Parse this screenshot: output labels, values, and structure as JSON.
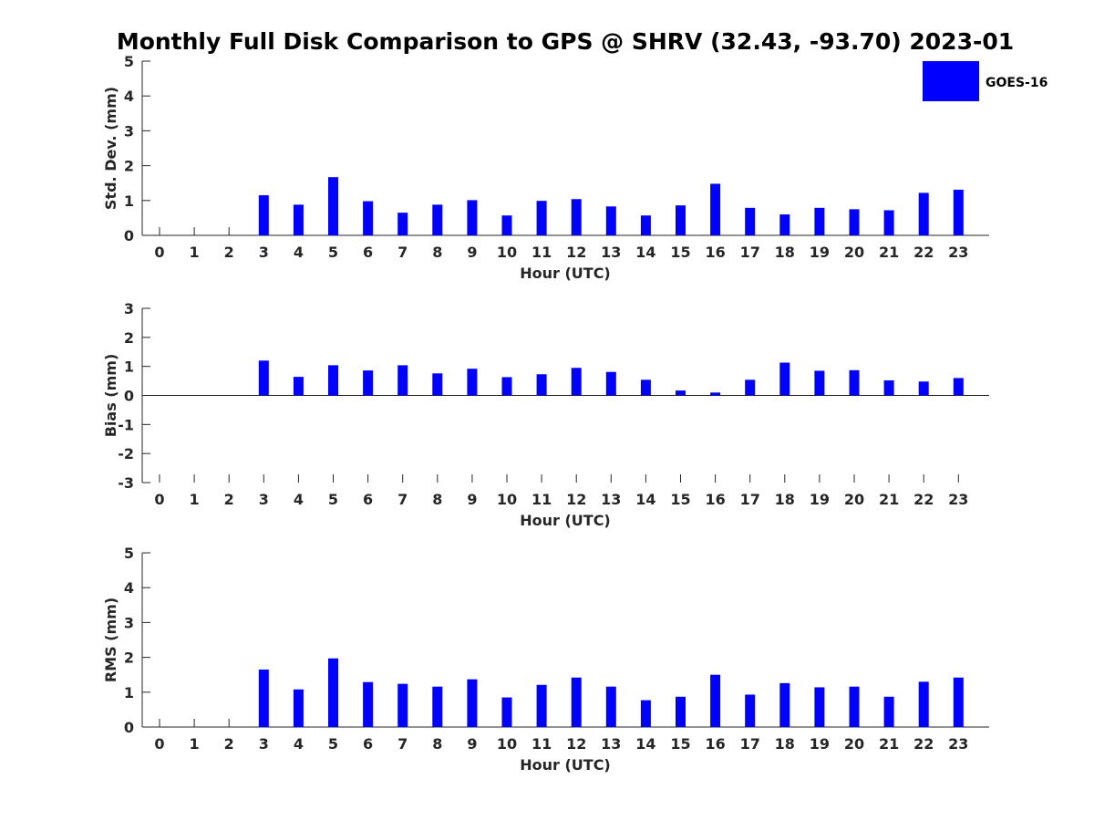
{
  "title": "Monthly Full Disk Comparison to GPS @ SHRV (32.43, -93.70) 2023-01",
  "bar_color": "#0000ff",
  "legend": {
    "label": "GOES-16"
  },
  "chart_data": [
    {
      "type": "bar",
      "xlabel": "Hour (UTC)",
      "ylabel": "Std. Dev. (mm)",
      "ylim": [
        0,
        5
      ],
      "yticks": [
        0,
        1,
        2,
        3,
        4,
        5
      ],
      "categories": [
        "0",
        "1",
        "2",
        "3",
        "4",
        "5",
        "6",
        "7",
        "8",
        "9",
        "10",
        "11",
        "12",
        "13",
        "14",
        "15",
        "16",
        "17",
        "18",
        "19",
        "20",
        "21",
        "22",
        "23"
      ],
      "series": [
        {
          "name": "GOES-16",
          "values": [
            null,
            null,
            null,
            1.15,
            0.88,
            1.67,
            0.98,
            0.65,
            0.88,
            1.01,
            0.57,
            0.99,
            1.04,
            0.83,
            0.57,
            0.86,
            1.48,
            0.79,
            0.6,
            0.79,
            0.75,
            0.72,
            1.22,
            1.31
          ]
        }
      ],
      "legend": "top-right"
    },
    {
      "type": "bar",
      "xlabel": "Hour (UTC)",
      "ylabel": "Bias (mm)",
      "ylim": [
        -3,
        3
      ],
      "yticks": [
        -3,
        -2,
        -1,
        0,
        1,
        2,
        3
      ],
      "categories": [
        "0",
        "1",
        "2",
        "3",
        "4",
        "5",
        "6",
        "7",
        "8",
        "9",
        "10",
        "11",
        "12",
        "13",
        "14",
        "15",
        "16",
        "17",
        "18",
        "19",
        "20",
        "21",
        "22",
        "23"
      ],
      "series": [
        {
          "name": "GOES-16",
          "values": [
            null,
            null,
            null,
            1.2,
            0.64,
            1.04,
            0.86,
            1.04,
            0.76,
            0.92,
            0.63,
            0.73,
            0.95,
            0.81,
            0.54,
            0.17,
            0.1,
            0.54,
            1.13,
            0.85,
            0.87,
            0.52,
            0.48,
            0.6
          ]
        }
      ]
    },
    {
      "type": "bar",
      "xlabel": "Hour (UTC)",
      "ylabel": "RMS (mm)",
      "ylim": [
        0,
        5
      ],
      "yticks": [
        0,
        1,
        2,
        3,
        4,
        5
      ],
      "categories": [
        "0",
        "1",
        "2",
        "3",
        "4",
        "5",
        "6",
        "7",
        "8",
        "9",
        "10",
        "11",
        "12",
        "13",
        "14",
        "15",
        "16",
        "17",
        "18",
        "19",
        "20",
        "21",
        "22",
        "23"
      ],
      "series": [
        {
          "name": "GOES-16",
          "values": [
            null,
            null,
            null,
            1.65,
            1.08,
            1.97,
            1.29,
            1.24,
            1.16,
            1.37,
            0.85,
            1.21,
            1.42,
            1.16,
            0.77,
            0.87,
            1.5,
            0.93,
            1.26,
            1.14,
            1.16,
            0.87,
            1.3,
            1.42
          ]
        }
      ]
    }
  ]
}
